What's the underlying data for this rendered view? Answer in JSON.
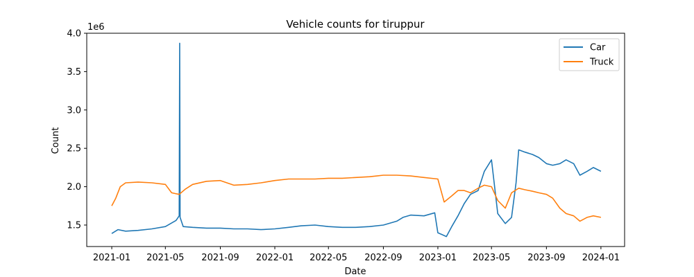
{
  "chart_data": {
    "type": "line",
    "title": "Vehicle counts for tiruppur",
    "xlabel": "Date",
    "ylabel": "Count",
    "y_multiplier_label": "1e6",
    "xlim": [
      "2020-11-06",
      "2024-02-23"
    ],
    "ylim": [
      1.22,
      4.0
    ],
    "y_ticks": [
      1.5,
      2.0,
      2.5,
      3.0,
      3.5,
      4.0
    ],
    "y_tick_labels": [
      "1.5",
      "2.0",
      "2.5",
      "3.0",
      "3.5",
      "4.0"
    ],
    "x_ticks": [
      "2021-01-01",
      "2021-05-01",
      "2021-09-01",
      "2022-01-01",
      "2022-05-01",
      "2022-09-01",
      "2023-01-01",
      "2023-05-01",
      "2023-09-01",
      "2024-01-01"
    ],
    "x_tick_labels": [
      "2021-01",
      "2021-05",
      "2021-09",
      "2022-01",
      "2022-05",
      "2022-09",
      "2023-01",
      "2023-05",
      "2023-09",
      "2024-01"
    ],
    "grid": false,
    "legend_position": "top-right",
    "series": [
      {
        "name": "Car",
        "color": "#1f77b4",
        "x": [
          "2021-01-01",
          "2021-01-15",
          "2021-02-01",
          "2021-03-01",
          "2021-04-01",
          "2021-05-01",
          "2021-05-25",
          "2021-06-01",
          "2021-06-02",
          "2021-06-03",
          "2021-06-10",
          "2021-07-01",
          "2021-08-01",
          "2021-09-01",
          "2021-10-01",
          "2021-11-01",
          "2021-12-01",
          "2022-01-01",
          "2022-02-01",
          "2022-03-01",
          "2022-04-01",
          "2022-05-01",
          "2022-06-01",
          "2022-07-01",
          "2022-08-01",
          "2022-09-01",
          "2022-10-01",
          "2022-10-15",
          "2022-11-01",
          "2022-12-01",
          "2022-12-25",
          "2023-01-01",
          "2023-01-20",
          "2023-02-01",
          "2023-02-15",
          "2023-03-01",
          "2023-03-15",
          "2023-04-01",
          "2023-04-15",
          "2023-05-01",
          "2023-05-15",
          "2023-06-01",
          "2023-06-15",
          "2023-06-25",
          "2023-07-01",
          "2023-07-15",
          "2023-08-01",
          "2023-08-15",
          "2023-09-01",
          "2023-09-15",
          "2023-10-01",
          "2023-10-15",
          "2023-11-01",
          "2023-11-15",
          "2023-12-01",
          "2023-12-15",
          "2024-01-01"
        ],
        "y": [
          1.39,
          1.44,
          1.42,
          1.43,
          1.45,
          1.48,
          1.56,
          1.62,
          3.87,
          1.6,
          1.48,
          1.47,
          1.46,
          1.46,
          1.45,
          1.45,
          1.44,
          1.45,
          1.47,
          1.49,
          1.5,
          1.48,
          1.47,
          1.47,
          1.48,
          1.5,
          1.55,
          1.6,
          1.63,
          1.62,
          1.66,
          1.4,
          1.35,
          1.48,
          1.62,
          1.78,
          1.9,
          1.95,
          2.2,
          2.35,
          1.65,
          1.52,
          1.6,
          2.05,
          2.48,
          2.45,
          2.42,
          2.38,
          2.3,
          2.28,
          2.3,
          2.35,
          2.3,
          2.15,
          2.2,
          2.25,
          2.2
        ]
      },
      {
        "name": "Truck",
        "color": "#ff7f0e",
        "x": [
          "2021-01-01",
          "2021-01-10",
          "2021-01-20",
          "2021-02-01",
          "2021-03-01",
          "2021-04-01",
          "2021-05-01",
          "2021-05-15",
          "2021-06-01",
          "2021-06-15",
          "2021-07-01",
          "2021-08-01",
          "2021-09-01",
          "2021-10-01",
          "2021-11-01",
          "2021-12-01",
          "2022-01-01",
          "2022-02-01",
          "2022-03-01",
          "2022-04-01",
          "2022-05-01",
          "2022-06-01",
          "2022-07-01",
          "2022-08-01",
          "2022-09-01",
          "2022-10-01",
          "2022-11-01",
          "2022-12-01",
          "2023-01-01",
          "2023-01-15",
          "2023-02-01",
          "2023-02-15",
          "2023-03-01",
          "2023-03-15",
          "2023-04-01",
          "2023-04-15",
          "2023-05-01",
          "2023-05-15",
          "2023-06-01",
          "2023-06-15",
          "2023-07-01",
          "2023-07-15",
          "2023-08-01",
          "2023-08-15",
          "2023-09-01",
          "2023-09-15",
          "2023-10-01",
          "2023-10-15",
          "2023-11-01",
          "2023-11-15",
          "2023-12-01",
          "2023-12-15",
          "2024-01-01"
        ],
        "y": [
          1.75,
          1.85,
          2.0,
          2.05,
          2.06,
          2.05,
          2.03,
          1.92,
          1.9,
          1.97,
          2.03,
          2.07,
          2.08,
          2.02,
          2.03,
          2.05,
          2.08,
          2.1,
          2.1,
          2.1,
          2.11,
          2.11,
          2.12,
          2.13,
          2.15,
          2.15,
          2.14,
          2.12,
          2.1,
          1.8,
          1.88,
          1.95,
          1.95,
          1.92,
          1.98,
          2.02,
          2.0,
          1.82,
          1.72,
          1.92,
          1.98,
          1.96,
          1.94,
          1.92,
          1.9,
          1.85,
          1.72,
          1.65,
          1.62,
          1.55,
          1.6,
          1.62,
          1.6
        ]
      }
    ]
  }
}
